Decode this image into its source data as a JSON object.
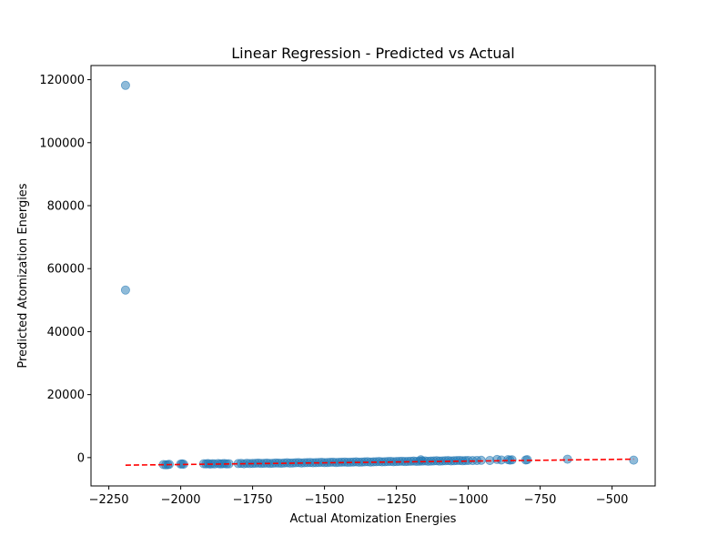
{
  "chart_data": {
    "type": "scatter",
    "title": "Linear Regression - Predicted vs Actual",
    "xlabel": "Actual Atomization Energies",
    "ylabel": "Predicted Atomization Energies",
    "xlim": [
      -2312,
      -350
    ],
    "ylim": [
      -9000,
      124500
    ],
    "xticks": [
      -2250,
      -2000,
      -1750,
      -1500,
      -1250,
      -1000,
      -750,
      -500
    ],
    "xtick_labels": [
      "−2250",
      "−2000",
      "−1750",
      "−1500",
      "−1250",
      "−1000",
      "−750",
      "−500"
    ],
    "yticks": [
      0,
      20000,
      40000,
      60000,
      80000,
      100000,
      120000
    ],
    "ytick_labels": [
      "0",
      "20000",
      "40000",
      "60000",
      "80000",
      "100000",
      "120000"
    ],
    "grid": false,
    "series": [
      {
        "color": "#1f77b4",
        "alpha": 0.5,
        "points": [
          [
            -2192,
            118200
          ],
          [
            -2192,
            53200
          ],
          [
            -2060,
            -2200
          ],
          [
            -2052,
            -2300
          ],
          [
            -2045,
            -2250
          ],
          [
            -2040,
            -2150
          ],
          [
            -2000,
            -2050
          ],
          [
            -1995,
            -2000
          ],
          [
            -1990,
            -2100
          ],
          [
            -1920,
            -1950
          ],
          [
            -1912,
            -2000
          ],
          [
            -1905,
            -1900
          ],
          [
            -1898,
            -2050
          ],
          [
            -1890,
            -1950
          ],
          [
            -1882,
            -2000
          ],
          [
            -1870,
            -1900
          ],
          [
            -1862,
            -2000
          ],
          [
            -1855,
            -1950
          ],
          [
            -1848,
            -1900
          ],
          [
            -1840,
            -2000
          ],
          [
            -1832,
            -1950
          ],
          [
            -1800,
            -1900
          ],
          [
            -1790,
            -1850
          ],
          [
            -1780,
            -1950
          ],
          [
            -1770,
            -1800
          ],
          [
            -1760,
            -1900
          ],
          [
            -1750,
            -1850
          ],
          [
            -1740,
            -1800
          ],
          [
            -1730,
            -1750
          ],
          [
            -1720,
            -1850
          ],
          [
            -1710,
            -1800
          ],
          [
            -1700,
            -1750
          ],
          [
            -1690,
            -1850
          ],
          [
            -1680,
            -1800
          ],
          [
            -1670,
            -1700
          ],
          [
            -1660,
            -1750
          ],
          [
            -1650,
            -1800
          ],
          [
            -1640,
            -1700
          ],
          [
            -1630,
            -1650
          ],
          [
            -1620,
            -1750
          ],
          [
            -1610,
            -1700
          ],
          [
            -1600,
            -1650
          ],
          [
            -1590,
            -1600
          ],
          [
            -1580,
            -1700
          ],
          [
            -1570,
            -1650
          ],
          [
            -1560,
            -1600
          ],
          [
            -1550,
            -1550
          ],
          [
            -1540,
            -1650
          ],
          [
            -1530,
            -1600
          ],
          [
            -1520,
            -1550
          ],
          [
            -1510,
            -1500
          ],
          [
            -1500,
            -1600
          ],
          [
            -1490,
            -1550
          ],
          [
            -1480,
            -1500
          ],
          [
            -1470,
            -1450
          ],
          [
            -1460,
            -1550
          ],
          [
            -1450,
            -1500
          ],
          [
            -1440,
            -1450
          ],
          [
            -1430,
            -1400
          ],
          [
            -1420,
            -1500
          ],
          [
            -1410,
            -1450
          ],
          [
            -1400,
            -1400
          ],
          [
            -1390,
            -1350
          ],
          [
            -1380,
            -1450
          ],
          [
            -1370,
            -1400
          ],
          [
            -1360,
            -1350
          ],
          [
            -1350,
            -1300
          ],
          [
            -1340,
            -1400
          ],
          [
            -1330,
            -1350
          ],
          [
            -1320,
            -1300
          ],
          [
            -1310,
            -1250
          ],
          [
            -1300,
            -1350
          ],
          [
            -1290,
            -1300
          ],
          [
            -1280,
            -1250
          ],
          [
            -1270,
            -1200
          ],
          [
            -1260,
            -1300
          ],
          [
            -1250,
            -1250
          ],
          [
            -1240,
            -1200
          ],
          [
            -1230,
            -1150
          ],
          [
            -1220,
            -1250
          ],
          [
            -1210,
            -1200
          ],
          [
            -1200,
            -1150
          ],
          [
            -1190,
            -1100
          ],
          [
            -1180,
            -1200
          ],
          [
            -1170,
            -1150
          ],
          [
            -1165,
            -700
          ],
          [
            -1160,
            -1100
          ],
          [
            -1150,
            -1050
          ],
          [
            -1140,
            -1150
          ],
          [
            -1130,
            -1100
          ],
          [
            -1120,
            -1050
          ],
          [
            -1110,
            -1000
          ],
          [
            -1100,
            -1100
          ],
          [
            -1090,
            -1050
          ],
          [
            -1080,
            -1000
          ],
          [
            -1070,
            -950
          ],
          [
            -1060,
            -1050
          ],
          [
            -1050,
            -1000
          ],
          [
            -1040,
            -950
          ],
          [
            -1030,
            -900
          ],
          [
            -1020,
            -1000
          ],
          [
            -1010,
            -950
          ],
          [
            -1000,
            -900
          ],
          [
            -985,
            -950
          ],
          [
            -970,
            -900
          ],
          [
            -955,
            -850
          ],
          [
            -925,
            -900
          ],
          [
            -900,
            -600
          ],
          [
            -885,
            -750
          ],
          [
            -862,
            -650
          ],
          [
            -855,
            -800
          ],
          [
            -848,
            -700
          ],
          [
            -800,
            -750
          ],
          [
            -795,
            -650
          ],
          [
            -655,
            -500
          ],
          [
            -425,
            -800
          ]
        ]
      }
    ],
    "fit_line": {
      "color": "#ff0000",
      "style": "dashed",
      "points": [
        [
          -2192,
          -2400
        ],
        [
          -425,
          -500
        ]
      ]
    }
  }
}
